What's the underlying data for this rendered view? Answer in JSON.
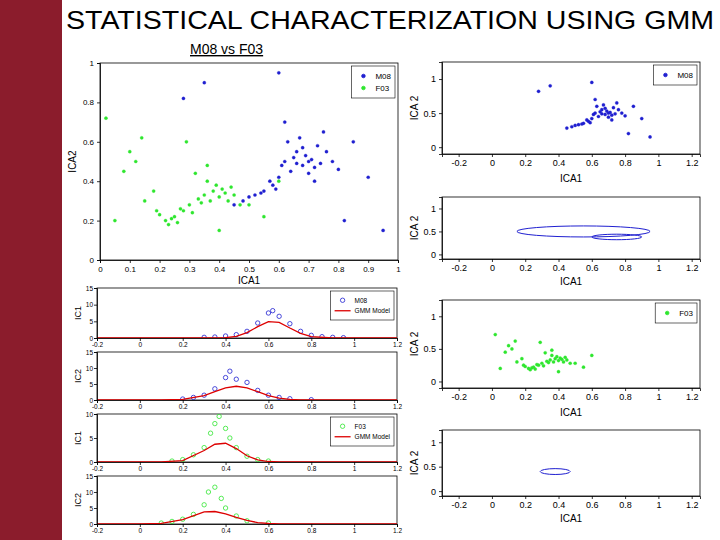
{
  "slide": {
    "title": "STATISTICAL CHARACTERIZATION USING GMM",
    "subtitle": "M08 vs F03"
  },
  "chart_data": [
    {
      "type": "scatter",
      "x_label": "ICA1",
      "y_label": "ICA2",
      "xlim": [
        0,
        1
      ],
      "ylim": [
        0,
        1
      ],
      "xticks": [
        0,
        0.1,
        0.2,
        0.3,
        0.4,
        0.5,
        0.6,
        0.7,
        0.8,
        0.9,
        1
      ],
      "yticks": [
        0,
        0.2,
        0.4,
        0.6,
        0.8,
        1
      ],
      "legend": "upper right",
      "series": [
        {
          "name": "M08",
          "color": "#1f1fd0",
          "marker": "dot",
          "x": [
            0.62,
            0.65,
            0.68,
            0.7,
            0.72,
            0.66,
            0.64,
            0.69,
            0.71,
            0.74,
            0.6,
            0.58,
            0.55,
            0.52,
            0.5,
            0.57,
            0.63,
            0.67,
            0.73,
            0.76,
            0.78,
            0.8,
            0.75,
            0.7,
            0.68,
            0.66,
            0.61,
            0.59,
            0.54,
            0.48,
            0.85,
            0.9,
            0.45,
            0.62,
            0.72,
            0.35,
            0.28,
            0.95,
            0.82,
            0.6
          ],
          "values": [
            0.5,
            0.52,
            0.48,
            0.5,
            0.47,
            0.55,
            0.45,
            0.53,
            0.51,
            0.49,
            0.42,
            0.38,
            0.35,
            0.33,
            0.32,
            0.4,
            0.6,
            0.62,
            0.58,
            0.55,
            0.5,
            0.46,
            0.65,
            0.44,
            0.57,
            0.49,
            0.48,
            0.36,
            0.34,
            0.3,
            0.6,
            0.42,
            0.28,
            0.7,
            0.4,
            0.9,
            0.82,
            0.15,
            0.2,
            0.95
          ]
        },
        {
          "name": "F03",
          "color": "#2ee62e",
          "marker": "dot",
          "x": [
            0.35,
            0.38,
            0.4,
            0.42,
            0.37,
            0.39,
            0.41,
            0.36,
            0.33,
            0.3,
            0.28,
            0.25,
            0.22,
            0.2,
            0.24,
            0.27,
            0.32,
            0.34,
            0.43,
            0.45,
            0.47,
            0.44,
            0.31,
            0.26,
            0.23,
            0.19,
            0.15,
            0.12,
            0.1,
            0.08,
            0.18,
            0.5,
            0.55,
            0.29,
            0.36,
            0.4,
            0.05,
            0.02,
            0.14,
            0.6
          ],
          "values": [
            0.33,
            0.35,
            0.32,
            0.34,
            0.3,
            0.38,
            0.36,
            0.4,
            0.31,
            0.28,
            0.25,
            0.22,
            0.2,
            0.23,
            0.21,
            0.26,
            0.44,
            0.29,
            0.3,
            0.33,
            0.28,
            0.37,
            0.24,
            0.19,
            0.18,
            0.25,
            0.3,
            0.5,
            0.55,
            0.45,
            0.35,
            0.28,
            0.22,
            0.6,
            0.48,
            0.15,
            0.2,
            0.72,
            0.62,
            0.4
          ]
        }
      ]
    },
    {
      "type": "line",
      "y_label": "IC1",
      "xlim": [
        -0.2,
        1.2
      ],
      "ylim": [
        0,
        15
      ],
      "xticks": [
        -0.2,
        0,
        0.2,
        0.4,
        0.6,
        0.8,
        1,
        1.2
      ],
      "yticks": [
        0,
        5,
        10,
        15
      ],
      "legend": "upper right",
      "series": [
        {
          "name": "M08",
          "type": "scatter",
          "marker": "circle",
          "color": "#1f1fd0",
          "x": [
            0.3,
            0.35,
            0.4,
            0.45,
            0.5,
            0.55,
            0.6,
            0.62,
            0.65,
            0.7,
            0.75,
            0.8,
            0.85,
            0.9,
            0.95
          ],
          "values": [
            0.2,
            0.3,
            0.6,
            1,
            2,
            4.5,
            7.5,
            8.2,
            6.5,
            4.3,
            2,
            0.8,
            0.4,
            0.2,
            0.1
          ]
        },
        {
          "name": "GMM Model",
          "type": "line",
          "color": "#dd0000",
          "x": [
            -0.2,
            0,
            0.1,
            0.2,
            0.3,
            0.35,
            0.4,
            0.45,
            0.5,
            0.55,
            0.6,
            0.65,
            0.7,
            0.75,
            0.8,
            0.9,
            1,
            1.2
          ],
          "values": [
            0,
            0,
            0,
            0,
            0,
            0.02,
            0.1,
            0.5,
            1.6,
            3.4,
            4.9,
            4.7,
            3,
            1.4,
            0.4,
            0,
            0,
            0
          ]
        }
      ]
    },
    {
      "type": "line",
      "y_label": "IC2",
      "xlim": [
        -0.2,
        1.2
      ],
      "ylim": [
        0,
        15
      ],
      "xticks": [
        -0.2,
        0,
        0.2,
        0.4,
        0.6,
        0.8,
        1,
        1.2
      ],
      "yticks": [
        0,
        5,
        10,
        15
      ],
      "series": [
        {
          "type": "scatter",
          "marker": "circle",
          "color": "#1f1fd0",
          "x": [
            0.2,
            0.25,
            0.3,
            0.35,
            0.4,
            0.42,
            0.45,
            0.5,
            0.55,
            0.6,
            0.65,
            0.7,
            0.8
          ],
          "values": [
            0.3,
            0.8,
            1.5,
            3.5,
            7,
            9,
            6.5,
            5.5,
            3,
            1.5,
            0.8,
            0.4,
            0.1
          ]
        },
        {
          "type": "line",
          "color": "#dd0000",
          "x": [
            -0.2,
            0,
            0.1,
            0.2,
            0.3,
            0.35,
            0.4,
            0.45,
            0.5,
            0.55,
            0.6,
            0.65,
            0.7,
            0.75,
            0.8,
            0.9,
            1,
            1.2
          ],
          "values": [
            0,
            0,
            0,
            0.2,
            1.4,
            2.6,
            3.8,
            4.3,
            3.8,
            2.6,
            1.4,
            0.6,
            0.2,
            0.05,
            0,
            0,
            0,
            0
          ]
        }
      ]
    },
    {
      "type": "line",
      "y_label": "IC1",
      "xlim": [
        -0.2,
        1.2
      ],
      "ylim": [
        0,
        10
      ],
      "xticks": [
        -0.2,
        0,
        0.2,
        0.4,
        0.6,
        0.8,
        1,
        1.2
      ],
      "yticks": [
        0,
        5,
        10
      ],
      "legend": "upper right",
      "series": [
        {
          "name": "F03",
          "type": "scatter",
          "marker": "circle",
          "color": "#2ee62e",
          "x": [
            0.15,
            0.2,
            0.25,
            0.3,
            0.33,
            0.35,
            0.37,
            0.4,
            0.42,
            0.45,
            0.5,
            0.55,
            0.6
          ],
          "values": [
            0.2,
            0.5,
            1.5,
            3,
            6,
            8,
            9.5,
            7,
            5,
            3,
            1.2,
            0.5,
            0.2
          ]
        },
        {
          "name": "GMM Model",
          "type": "line",
          "color": "#dd0000",
          "x": [
            -0.2,
            0,
            0.1,
            0.2,
            0.3,
            0.35,
            0.4,
            0.45,
            0.5,
            0.55,
            0.6,
            0.65,
            0.7,
            0.75,
            0.8,
            0.9,
            1,
            1.2
          ],
          "values": [
            0,
            0,
            0.01,
            0.3,
            2.4,
            3.7,
            3.9,
            2.8,
            1.3,
            0.45,
            0.1,
            0.02,
            0,
            0,
            0,
            0,
            0,
            0
          ]
        }
      ]
    },
    {
      "type": "line",
      "y_label": "IC2",
      "xlim": [
        -0.2,
        1.2
      ],
      "ylim": [
        0,
        15
      ],
      "xticks": [
        -0.2,
        0,
        0.2,
        0.4,
        0.6,
        0.8,
        1,
        1.2
      ],
      "yticks": [
        0,
        5,
        10,
        15
      ],
      "series": [
        {
          "type": "scatter",
          "marker": "circle",
          "color": "#2ee62e",
          "x": [
            0.1,
            0.15,
            0.2,
            0.25,
            0.3,
            0.32,
            0.35,
            0.38,
            0.4,
            0.45,
            0.5,
            0.6
          ],
          "values": [
            0.3,
            0.8,
            1.5,
            3,
            6,
            10,
            11.5,
            8,
            5,
            2.5,
            1,
            0.3
          ]
        },
        {
          "type": "line",
          "color": "#dd0000",
          "x": [
            -0.2,
            0,
            0.1,
            0.2,
            0.3,
            0.35,
            0.4,
            0.45,
            0.5,
            0.55,
            0.6,
            0.65,
            0.7,
            0.75,
            0.8,
            0.9,
            1,
            1.2
          ],
          "values": [
            0,
            0,
            0.2,
            1.4,
            3.8,
            3.9,
            3.2,
            2.1,
            1.1,
            0.45,
            0.15,
            0.04,
            0,
            0,
            0,
            0,
            0,
            0
          ]
        }
      ]
    },
    {
      "type": "scatter",
      "x_label": "ICA1",
      "y_label": "ICA 2",
      "xlim": [
        -0.3,
        1.25
      ],
      "ylim": [
        -0.1,
        1.25
      ],
      "xticks": [
        -0.2,
        0,
        0.2,
        0.4,
        0.6,
        0.8,
        1,
        1.2
      ],
      "yticks": [
        0,
        0.5,
        1
      ],
      "legend": "upper right",
      "series": [
        {
          "name": "M08",
          "color": "#1f1fd0",
          "marker": "dot",
          "x": [
            0.62,
            0.65,
            0.68,
            0.7,
            0.72,
            0.66,
            0.64,
            0.69,
            0.71,
            0.74,
            0.6,
            0.58,
            0.55,
            0.52,
            0.5,
            0.57,
            0.63,
            0.67,
            0.73,
            0.76,
            0.78,
            0.8,
            0.75,
            0.7,
            0.68,
            0.66,
            0.61,
            0.59,
            0.54,
            0.48,
            0.85,
            0.9,
            0.45,
            0.62,
            0.72,
            0.35,
            0.28,
            0.95,
            0.82,
            0.6
          ],
          "values": [
            0.5,
            0.52,
            0.48,
            0.5,
            0.47,
            0.55,
            0.45,
            0.53,
            0.51,
            0.49,
            0.42,
            0.38,
            0.35,
            0.33,
            0.32,
            0.4,
            0.6,
            0.62,
            0.58,
            0.55,
            0.5,
            0.46,
            0.65,
            0.44,
            0.57,
            0.49,
            0.48,
            0.36,
            0.34,
            0.3,
            0.6,
            0.42,
            0.28,
            0.7,
            0.4,
            0.9,
            0.82,
            0.15,
            0.2,
            0.95
          ]
        }
      ]
    },
    {
      "type": "ellipse",
      "x_label": "ICA1",
      "y_label": "ICA 2",
      "xlim": [
        -0.3,
        1.25
      ],
      "ylim": [
        -0.1,
        1.25
      ],
      "xticks": [
        -0.2,
        0,
        0.2,
        0.4,
        0.6,
        0.8,
        1,
        1.2
      ],
      "yticks": [
        0,
        0.5,
        1
      ],
      "color": "#1f1fd0",
      "components": [
        {
          "x": 0.55,
          "y": 0.5,
          "x_radius": 0.4,
          "y_radius": 0.12
        },
        {
          "x": 0.75,
          "y": 0.38,
          "x_radius": 0.15,
          "y_radius": 0.06
        }
      ]
    },
    {
      "type": "scatter",
      "x_label": "ICA1",
      "y_label": "ICA 2",
      "xlim": [
        -0.3,
        1.25
      ],
      "ylim": [
        -0.1,
        1.25
      ],
      "xticks": [
        -0.2,
        0,
        0.2,
        0.4,
        0.6,
        0.8,
        1,
        1.2
      ],
      "yticks": [
        0,
        0.5,
        1
      ],
      "legend": "upper right",
      "series": [
        {
          "name": "F03",
          "color": "#2ee62e",
          "marker": "dot",
          "x": [
            0.35,
            0.38,
            0.4,
            0.42,
            0.37,
            0.39,
            0.41,
            0.36,
            0.33,
            0.3,
            0.28,
            0.25,
            0.22,
            0.2,
            0.24,
            0.27,
            0.32,
            0.34,
            0.43,
            0.45,
            0.47,
            0.44,
            0.31,
            0.26,
            0.23,
            0.19,
            0.15,
            0.12,
            0.1,
            0.08,
            0.18,
            0.5,
            0.55,
            0.29,
            0.36,
            0.4,
            0.05,
            0.02,
            0.14,
            0.6
          ],
          "values": [
            0.33,
            0.35,
            0.32,
            0.34,
            0.3,
            0.38,
            0.36,
            0.4,
            0.31,
            0.28,
            0.25,
            0.22,
            0.2,
            0.23,
            0.21,
            0.26,
            0.44,
            0.29,
            0.3,
            0.33,
            0.28,
            0.37,
            0.24,
            0.19,
            0.18,
            0.25,
            0.3,
            0.5,
            0.55,
            0.45,
            0.35,
            0.28,
            0.22,
            0.6,
            0.48,
            0.15,
            0.2,
            0.72,
            0.62,
            0.4
          ]
        }
      ]
    },
    {
      "type": "ellipse",
      "x_label": "ICA1",
      "y_label": "ICA 2",
      "xlim": [
        -0.3,
        1.25
      ],
      "ylim": [
        -0.1,
        1.25
      ],
      "xticks": [
        -0.2,
        0,
        0.2,
        0.4,
        0.6,
        0.8,
        1,
        1.2
      ],
      "yticks": [
        0,
        0.5,
        1
      ],
      "color": "#1f1fd0",
      "components": [
        {
          "x": 0.38,
          "y": 0.4,
          "x_radius": 0.09,
          "y_radius": 0.06
        }
      ]
    }
  ]
}
